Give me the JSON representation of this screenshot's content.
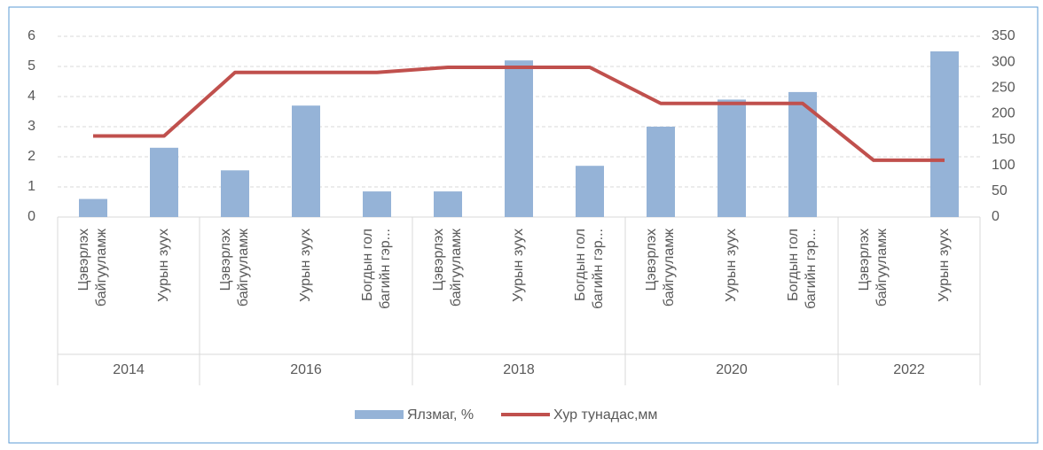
{
  "chart_data": {
    "type": "bar_line",
    "groups": [
      {
        "name": "2014",
        "categories": [
          [
            "Цэвэрлэх",
            "байгууламж"
          ],
          [
            "Уурын зуух"
          ]
        ]
      },
      {
        "name": "2016",
        "categories": [
          [
            "Цэвэрлэх",
            "байгууламж"
          ],
          [
            "Уурын зуух"
          ],
          [
            "Богдын гол",
            "багийн гэр..."
          ]
        ]
      },
      {
        "name": "2018",
        "categories": [
          [
            "Цэвэрлэх",
            "байгууламж"
          ],
          [
            "Уурын зуух"
          ],
          [
            "Богдын гол",
            "багийн гэр..."
          ]
        ]
      },
      {
        "name": "2020",
        "categories": [
          [
            "Цэвэрлэх",
            "байгууламж"
          ],
          [
            "Уурын зуух"
          ],
          [
            "Богдын гол",
            "багийн гэр..."
          ]
        ]
      },
      {
        "name": "2022",
        "categories": [
          [
            "Цэвэрлэх",
            "байгууламж"
          ],
          [
            "Уурын зуух"
          ]
        ]
      }
    ],
    "series": [
      {
        "name": "Ялзмаг, %",
        "type": "bar",
        "color": "#95b3d7",
        "values": [
          0.6,
          2.3,
          1.55,
          3.7,
          0.85,
          0.85,
          5.2,
          1.7,
          3.0,
          3.9,
          4.15,
          0,
          5.5
        ]
      },
      {
        "name": "Хур тунадас,мм",
        "type": "line",
        "axis": "y2",
        "color": "#c0504d",
        "values": [
          157,
          157,
          280,
          280,
          280,
          290,
          290,
          290,
          220,
          220,
          220,
          110,
          110
        ]
      }
    ],
    "ylim": [
      0,
      6
    ],
    "yticks": [
      0,
      1,
      2,
      3,
      4,
      5,
      6
    ],
    "y2lim": [
      0,
      350
    ],
    "y2ticks": [
      0,
      50,
      100,
      150,
      200,
      250,
      300,
      350
    ],
    "grid": true,
    "legend": "bottom"
  }
}
